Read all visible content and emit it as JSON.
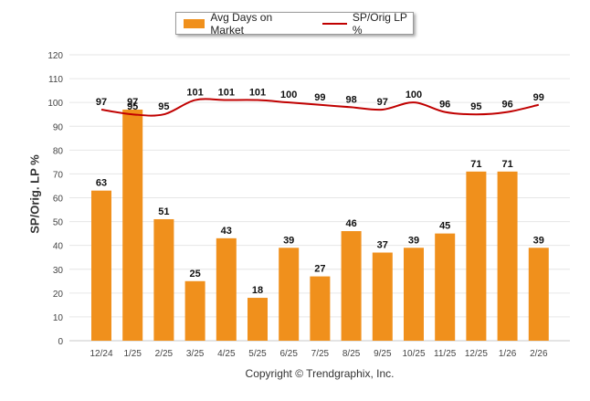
{
  "chart_data": {
    "type": "bar",
    "categories": [
      "12/24",
      "1/25",
      "2/25",
      "3/25",
      "4/25",
      "5/25",
      "6/25",
      "7/25",
      "8/25",
      "9/25",
      "10/25",
      "11/25",
      "12/25",
      "1/26",
      "2/26"
    ],
    "series": [
      {
        "name": "Avg Days on Market",
        "type": "bar",
        "color": "#f0901c",
        "values": [
          63,
          97,
          51,
          25,
          43,
          18,
          39,
          27,
          46,
          37,
          39,
          45,
          71,
          71,
          39
        ]
      },
      {
        "name": "SP/Orig LP %",
        "type": "line",
        "color": "#c00000",
        "values": [
          97,
          95,
          95,
          101,
          101,
          101,
          100,
          99,
          98,
          97,
          100,
          96,
          95,
          96,
          99
        ]
      }
    ],
    "ylabel": "SP/Orig. LP %",
    "xlabel": "",
    "ylim": [
      0,
      120
    ],
    "yticks": [
      0,
      10,
      20,
      30,
      40,
      50,
      60,
      70,
      80,
      90,
      100,
      110,
      120
    ],
    "grid": true,
    "legend": "top-center"
  },
  "footer": {
    "copyright": "Copyright © Trendgraphix, Inc."
  }
}
